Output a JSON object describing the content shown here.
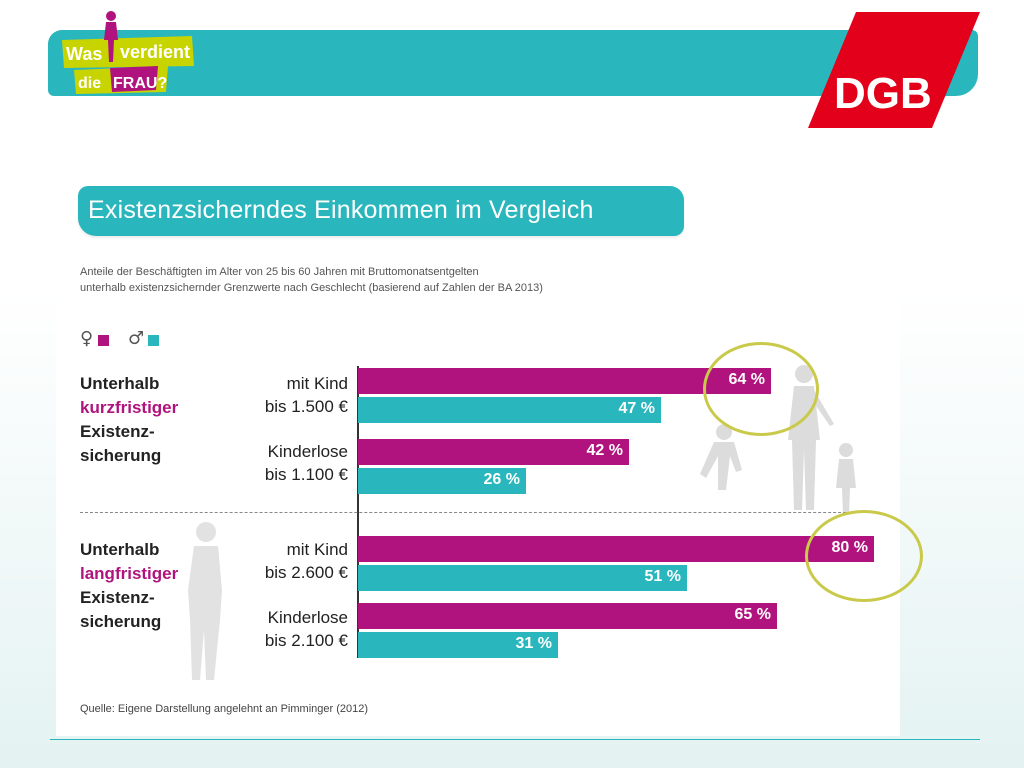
{
  "header": {
    "logo_left": {
      "line1a": "Was",
      "line1b": "verdient",
      "line2a": "die",
      "line2b": "FRAU?"
    },
    "logo_right": "DGB"
  },
  "title": "Existenzsicherndes Einkommen im Vergleich",
  "subtitle_line1": "Anteile der Beschäftigten im Alter von 25 bis 60 Jahren mit Bruttomonatsentgelten",
  "subtitle_line2": "unterhalb existenzsichernder Grenzwerte nach Geschlecht (basierend auf Zahlen der BA 2013)",
  "legend": [
    {
      "symbol": "♀",
      "color": "#b0137d"
    },
    {
      "symbol": "♂",
      "color": "#29b6bd"
    }
  ],
  "groups": [
    {
      "line1": "Unterhalb",
      "line2": "kurzfristiger",
      "line3": "Existenz-",
      "line4": "sicherung"
    },
    {
      "line1": "Unterhalb",
      "line2": "langfristiger",
      "line3": "Existenz-",
      "line4": "sicherung"
    }
  ],
  "row_labels": [
    {
      "a": "mit Kind",
      "b": "bis 1.500 €"
    },
    {
      "a": "Kinderlose",
      "b": "bis 1.100 €"
    },
    {
      "a": "mit Kind",
      "b": "bis 2.600 €"
    },
    {
      "a": "Kinderlose",
      "b": "bis 2.100 €"
    }
  ],
  "source": "Quelle: Eigene Darstellung angelehnt an Pimminger (2012)",
  "colors": {
    "women": "#b0137d",
    "men": "#29b6bd",
    "highlight": "#c9c94a",
    "brand_red": "#e2001a"
  },
  "chart_data": {
    "type": "bar",
    "orientation": "horizontal",
    "categories": [
      "mit Kind bis 1.500 €",
      "Kinderlose bis 1.100 €",
      "mit Kind bis 2.600 €",
      "Kinderlose bis 2.100 €"
    ],
    "series": [
      {
        "name": "♀",
        "color": "#b0137d",
        "values": [
          64,
          42,
          80,
          65
        ],
        "labels": [
          "64 %",
          "42 %",
          "80 %",
          "65 %"
        ]
      },
      {
        "name": "♂",
        "color": "#29b6bd",
        "values": [
          47,
          26,
          51,
          31
        ],
        "labels": [
          "47 %",
          "26 %",
          "51 %",
          "31 %"
        ]
      }
    ],
    "xlim": [
      0,
      80
    ],
    "grid": false,
    "highlighted": [
      "64 %",
      "80 %"
    ]
  }
}
